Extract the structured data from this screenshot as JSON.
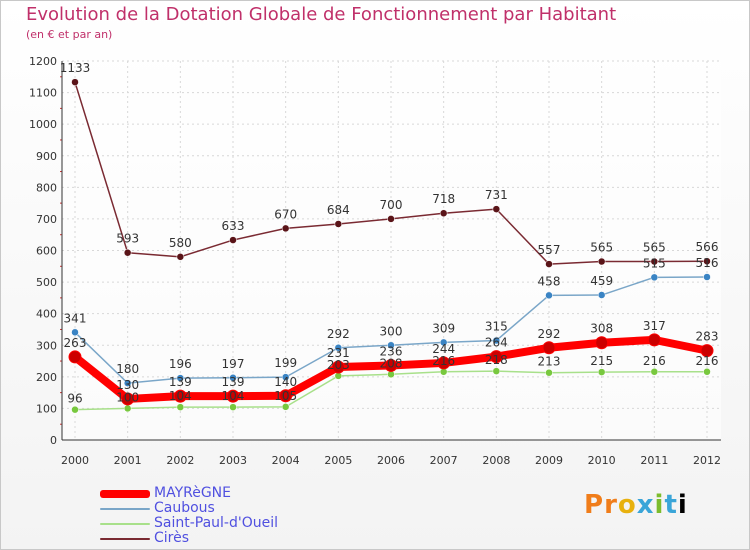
{
  "chart_data": {
    "type": "line",
    "title": "Evolution de la Dotation Globale de Fonctionnement par Habitant",
    "subtitle": "(en € et par an)",
    "xlabel": "",
    "ylabel": "",
    "ylim": [
      0,
      1200
    ],
    "yticks": [
      0,
      100,
      200,
      300,
      400,
      500,
      600,
      700,
      800,
      900,
      1000,
      1100,
      1200
    ],
    "categories": [
      "2000",
      "2001",
      "2002",
      "2003",
      "2004",
      "2005",
      "2006",
      "2007",
      "2008",
      "2009",
      "2010",
      "2011",
      "2012"
    ],
    "series": [
      {
        "name": "Cirès",
        "color": "#7a2a32",
        "marker": "#5a1418",
        "values": [
          1133,
          593,
          580,
          633,
          670,
          684,
          700,
          718,
          731,
          557,
          565,
          565,
          566
        ]
      },
      {
        "name": "Caubous",
        "color": "#7aa6c8",
        "marker": "#3a84c4",
        "values": [
          341,
          180,
          196,
          197,
          199,
          292,
          300,
          309,
          315,
          458,
          459,
          515,
          516
        ]
      },
      {
        "name": "Saint-Paul-d'Oueil",
        "color": "#a8e08a",
        "marker": "#78c83e",
        "values": [
          96,
          100,
          104,
          104,
          105,
          203,
          208,
          216,
          218,
          213,
          215,
          216,
          216
        ]
      },
      {
        "name": "MAYRèGNE",
        "color": "#ff0000",
        "marker": "#cc0000",
        "values": [
          263,
          130,
          139,
          139,
          140,
          231,
          236,
          244,
          264,
          292,
          308,
          317,
          283
        ]
      }
    ]
  },
  "legend": [
    {
      "name": "MAYRèGNE",
      "color": "#ff0000"
    },
    {
      "name": "Caubous",
      "color": "#7aa6c8"
    },
    {
      "name": "Saint-Paul-d'Oueil",
      "color": "#a8e08a"
    },
    {
      "name": "Cirès",
      "color": "#7a2a32"
    }
  ],
  "logo": {
    "letters": [
      "P",
      "r",
      "o",
      "x",
      "i",
      "t",
      "i"
    ]
  }
}
